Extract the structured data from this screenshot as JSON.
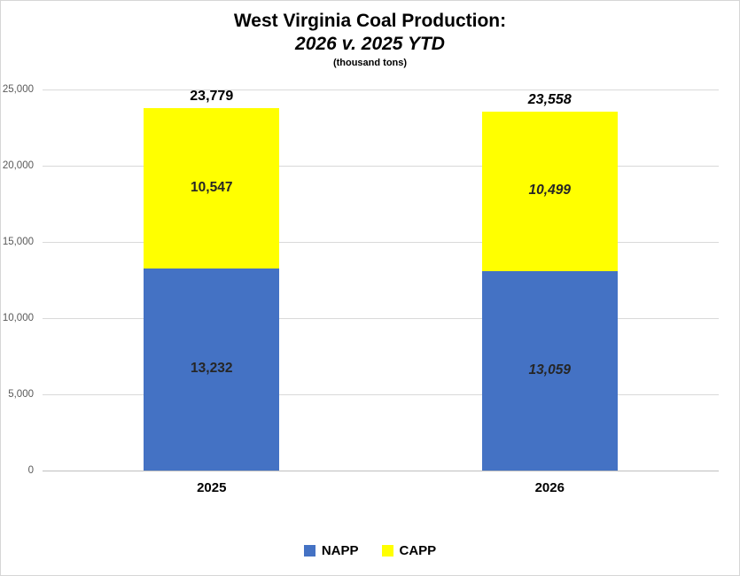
{
  "title": {
    "line1": "West Virginia Coal Production:",
    "line2": "2026 v. 2025 YTD",
    "subtitle": "(thousand tons)"
  },
  "chart_data": {
    "type": "bar",
    "stacked": true,
    "title": "West Virginia Coal Production: 2026 v. 2025 YTD (thousand tons)",
    "xlabel": "",
    "ylabel": "",
    "categories": [
      "2025",
      "2026"
    ],
    "category_label_style": [
      "normal",
      "italic"
    ],
    "series": [
      {
        "name": "NAPP",
        "color": "#4472c4",
        "values": [
          13232,
          13059
        ],
        "labels": [
          "13,232",
          "13,059"
        ]
      },
      {
        "name": "CAPP",
        "color": "#ffff00",
        "values": [
          10547,
          10499
        ],
        "labels": [
          "10,547",
          "10,499"
        ]
      }
    ],
    "totals": [
      23779,
      23558
    ],
    "total_labels": [
      "23,779",
      "23,558"
    ],
    "ylim": [
      0,
      25000
    ],
    "yticks": [
      0,
      5000,
      10000,
      15000,
      20000,
      25000
    ],
    "ytick_labels": [
      "0",
      "5,000",
      "10,000",
      "15,000",
      "20,000",
      "25,000"
    ],
    "grid": true,
    "legend_position": "bottom",
    "colors": {
      "gridline": "#d9d9d9",
      "axis_line": "#bfbfbf",
      "tick_text": "#595959",
      "segment_label_text": "#262626",
      "total_label_text": "#000000"
    }
  }
}
